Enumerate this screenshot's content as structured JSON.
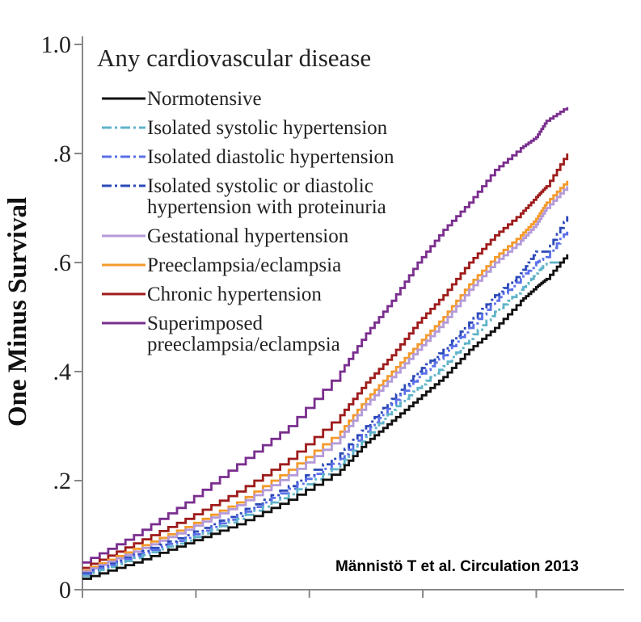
{
  "citation": "Männistö T et al. Circulation 2013",
  "chart_data": {
    "type": "line",
    "title": "Any cardiovascular disease",
    "ylabel": "One Minus Survival",
    "xlabel": "",
    "ylim": [
      0,
      1.0
    ],
    "xlim": [
      0,
      1
    ],
    "yticks": [
      {
        "value": 0,
        "label": "0"
      },
      {
        "value": 0.2,
        "label": ".2"
      },
      {
        "value": 0.4,
        "label": ".4"
      },
      {
        "value": 0.6,
        "label": ".6"
      },
      {
        "value": 0.8,
        "label": ".8"
      },
      {
        "value": 1.0,
        "label": "1.0"
      }
    ],
    "xticks": [
      0,
      0.22,
      0.44,
      0.66,
      0.88
    ],
    "grid": false,
    "legend_position": "top-left",
    "series": [
      {
        "name": "Superimposed preeclampsia/eclampsia",
        "name_lines": [
          "Superimposed",
          "preeclampsia/eclampsia"
        ],
        "color": "#7a2e8e",
        "dash": "solid",
        "x": [
          0,
          0.1,
          0.2,
          0.3,
          0.4,
          0.5,
          0.55,
          0.6,
          0.65,
          0.7,
          0.75,
          0.8,
          0.85,
          0.88,
          0.9,
          0.94
        ],
        "y": [
          0.05,
          0.1,
          0.16,
          0.23,
          0.3,
          0.4,
          0.47,
          0.53,
          0.6,
          0.66,
          0.71,
          0.77,
          0.81,
          0.83,
          0.86,
          0.885
        ]
      },
      {
        "name": "Chronic hypertension",
        "name_lines": [
          "Chronic hypertension"
        ],
        "color": "#9e1b1b",
        "dash": "solid",
        "x": [
          0,
          0.1,
          0.2,
          0.3,
          0.4,
          0.5,
          0.55,
          0.6,
          0.65,
          0.7,
          0.75,
          0.8,
          0.85,
          0.88,
          0.9,
          0.94
        ],
        "y": [
          0.04,
          0.085,
          0.13,
          0.18,
          0.24,
          0.32,
          0.38,
          0.43,
          0.49,
          0.54,
          0.6,
          0.65,
          0.69,
          0.72,
          0.74,
          0.8
        ]
      },
      {
        "name": "Preeclampsia/eclampsia",
        "name_lines": [
          "Preeclampsia/eclampsia"
        ],
        "color": "#f39a2b",
        "dash": "solid",
        "x": [
          0,
          0.1,
          0.2,
          0.3,
          0.4,
          0.5,
          0.55,
          0.6,
          0.65,
          0.7,
          0.75,
          0.8,
          0.85,
          0.88,
          0.9,
          0.94
        ],
        "y": [
          0.035,
          0.075,
          0.115,
          0.16,
          0.22,
          0.29,
          0.35,
          0.4,
          0.45,
          0.5,
          0.56,
          0.61,
          0.65,
          0.68,
          0.71,
          0.75
        ]
      },
      {
        "name": "Gestational hypertension",
        "name_lines": [
          "Gestational hypertension"
        ],
        "color": "#b49ad8",
        "dash": "solid",
        "x": [
          0,
          0.1,
          0.2,
          0.3,
          0.4,
          0.5,
          0.55,
          0.6,
          0.65,
          0.7,
          0.75,
          0.8,
          0.85,
          0.88,
          0.9,
          0.94
        ],
        "y": [
          0.033,
          0.07,
          0.11,
          0.155,
          0.21,
          0.28,
          0.34,
          0.39,
          0.44,
          0.49,
          0.55,
          0.6,
          0.64,
          0.67,
          0.7,
          0.74
        ]
      },
      {
        "name": "Isolated systolic or diastolic hypertension with proteinuria",
        "name_lines": [
          "Isolated systolic or diastolic",
          "hypertension with proteinuria"
        ],
        "color": "#2b49b8",
        "dash": "dashdot",
        "x": [
          0,
          0.1,
          0.2,
          0.3,
          0.4,
          0.5,
          0.55,
          0.6,
          0.65,
          0.7,
          0.75,
          0.8,
          0.85,
          0.88,
          0.9,
          0.94
        ],
        "y": [
          0.03,
          0.065,
          0.1,
          0.14,
          0.19,
          0.25,
          0.3,
          0.35,
          0.4,
          0.44,
          0.49,
          0.54,
          0.58,
          0.62,
          0.62,
          0.685
        ]
      },
      {
        "name": "Isolated diastolic hypertension",
        "name_lines": [
          "Isolated diastolic hypertension"
        ],
        "color": "#5a6fe8",
        "dash": "dashdot",
        "x": [
          0,
          0.1,
          0.2,
          0.3,
          0.4,
          0.5,
          0.55,
          0.6,
          0.65,
          0.7,
          0.75,
          0.8,
          0.85,
          0.88,
          0.9,
          0.94
        ],
        "y": [
          0.028,
          0.062,
          0.095,
          0.135,
          0.185,
          0.24,
          0.29,
          0.34,
          0.39,
          0.43,
          0.48,
          0.53,
          0.57,
          0.6,
          0.61,
          0.66
        ]
      },
      {
        "name": "Isolated systolic hypertension",
        "name_lines": [
          "Isolated systolic hypertension"
        ],
        "color": "#5fb3c9",
        "dash": "dashdot",
        "x": [
          0,
          0.1,
          0.2,
          0.3,
          0.4,
          0.5,
          0.55,
          0.6,
          0.65,
          0.7,
          0.75,
          0.8,
          0.85,
          0.88,
          0.9,
          0.94
        ],
        "y": [
          0.025,
          0.058,
          0.09,
          0.13,
          0.175,
          0.23,
          0.28,
          0.33,
          0.37,
          0.41,
          0.46,
          0.51,
          0.55,
          0.58,
          0.6,
          0.6
        ]
      },
      {
        "name": "Normotensive",
        "name_lines": [
          "Normotensive"
        ],
        "color": "#111111",
        "dash": "solid",
        "x": [
          0,
          0.1,
          0.2,
          0.3,
          0.4,
          0.5,
          0.55,
          0.6,
          0.65,
          0.7,
          0.75,
          0.8,
          0.85,
          0.88,
          0.9,
          0.94
        ],
        "y": [
          0.02,
          0.05,
          0.085,
          0.12,
          0.165,
          0.22,
          0.27,
          0.31,
          0.35,
          0.39,
          0.44,
          0.48,
          0.53,
          0.555,
          0.57,
          0.615
        ]
      }
    ],
    "legend_order": [
      "Normotensive",
      "Isolated systolic hypertension",
      "Isolated diastolic hypertension",
      "Isolated systolic or diastolic hypertension with proteinuria",
      "Gestational hypertension",
      "Preeclampsia/eclampsia",
      "Chronic hypertension",
      "Superimposed preeclampsia/eclampsia"
    ]
  }
}
